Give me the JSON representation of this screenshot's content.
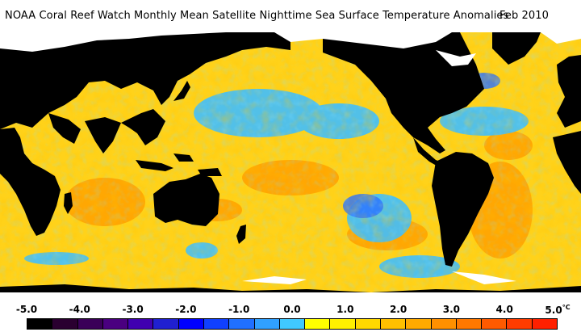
{
  "title": {
    "text": "NOAA Coral Reef Watch Monthly Mean Satellite Nighttime Sea Surface Temperature Anomalies",
    "date": "Feb 2010"
  },
  "legend": {
    "unit": "°C",
    "ticks": [
      {
        "label": "-5.0",
        "value": -5.0
      },
      {
        "label": "-4.0",
        "value": -4.0
      },
      {
        "label": "-3.0",
        "value": -3.0
      },
      {
        "label": "-2.0",
        "value": -2.0
      },
      {
        "label": "-1.0",
        "value": -1.0
      },
      {
        "label": "0.0",
        "value": 0.0
      },
      {
        "label": "1.0",
        "value": 1.0
      },
      {
        "label": "2.0",
        "value": 2.0
      },
      {
        "label": "3.0",
        "value": 3.0
      },
      {
        "label": "4.0",
        "value": 4.0
      },
      {
        "label": "5.0",
        "value": 5.0
      }
    ],
    "colors": [
      "#000000",
      "#2a0030",
      "#3a0058",
      "#4a0080",
      "#4000b0",
      "#2020d0",
      "#0000ff",
      "#1040ff",
      "#2070ff",
      "#30a0ff",
      "#40c8ff",
      "#ffff00",
      "#fff000",
      "#ffd800",
      "#ffc000",
      "#ffaa00",
      "#ff9000",
      "#ff7800",
      "#ff5a00",
      "#ff3c00",
      "#ff2000"
    ]
  },
  "colors": {
    "land": "#000000",
    "ice": "#ffffff",
    "ocean_warm": "#ffc020",
    "ocean_cool": "#40c0ff"
  }
}
